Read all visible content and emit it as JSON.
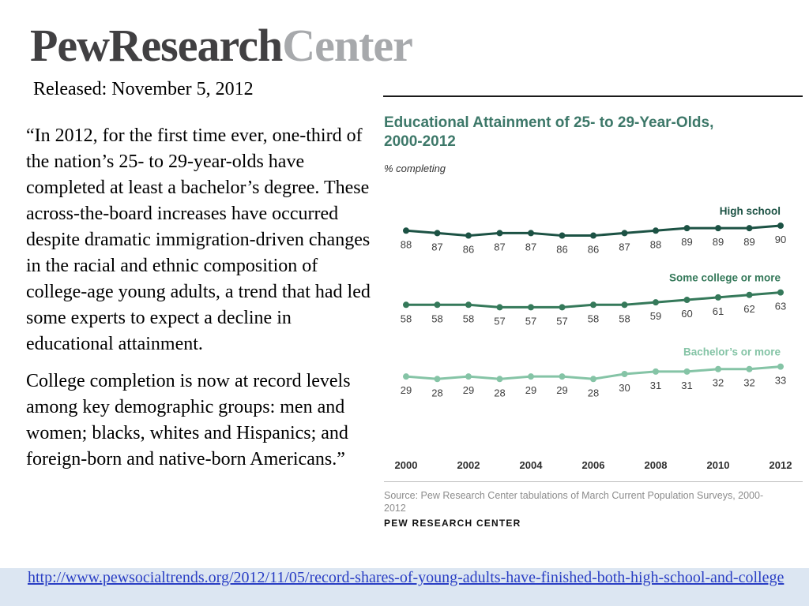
{
  "colors": {
    "title_green": "#3d7869",
    "link_blue": "#2a3fc4",
    "link_bar_bg": "#dce6f2"
  },
  "logo": {
    "primary": "Pew Research",
    "secondary": "Center"
  },
  "released": "Released: November 5, 2012",
  "quote": {
    "paragraph1": "“In 2012, for the first time ever, one-third of the nation’s 25- to 29-year-olds have completed at least a bachelor’s degree.  These across-the-board increases have occurred despite dramatic immigration-driven changes in the racial and ethnic composition of college-age young adults, a trend that had led some experts to expect a decline in educational attainment.",
    "paragraph2": "College completion is now at record levels among key demographic groups: men and women; blacks, whites and Hispanics; and foreign-born and native-born Americans.”"
  },
  "chart": {
    "title_line1": "Educational Attainment of 25- to 29-Year-Olds,",
    "title_line2": "2000-2012",
    "subtitle": "% completing",
    "source": "Source: Pew Research Center tabulations of March Current Population Surveys, 2000-2012",
    "brand": "PEW RESEARCH CENTER"
  },
  "chart_data": {
    "type": "line",
    "title": "Educational Attainment of 25- to 29-Year-Olds, 2000-2012",
    "subtitle": "% completing",
    "x": [
      2000,
      2001,
      2002,
      2003,
      2004,
      2005,
      2006,
      2007,
      2008,
      2009,
      2010,
      2011,
      2012
    ],
    "x_tick_labels": [
      "2000",
      "2002",
      "2004",
      "2006",
      "2008",
      "2010",
      "2012"
    ],
    "ylim": [
      0,
      100
    ],
    "grid": false,
    "legend_position": "inline-right",
    "series": [
      {
        "name": "High school",
        "color": "#1c5244",
        "values": [
          88,
          87,
          86,
          87,
          87,
          86,
          86,
          87,
          88,
          89,
          89,
          89,
          90
        ]
      },
      {
        "name": "Some college or more",
        "color": "#35795a",
        "values": [
          58,
          58,
          58,
          57,
          57,
          57,
          58,
          58,
          59,
          60,
          61,
          62,
          63
        ]
      },
      {
        "name": "Bachelor’s or more",
        "color": "#85c4a6",
        "values": [
          29,
          28,
          29,
          28,
          29,
          29,
          28,
          30,
          31,
          31,
          32,
          32,
          33
        ]
      }
    ]
  },
  "footer": {
    "link": "http://www.pewsocialtrends.org/2012/11/05/record-shares-of-young-adults-have-finished-both-high-school-and-college"
  }
}
